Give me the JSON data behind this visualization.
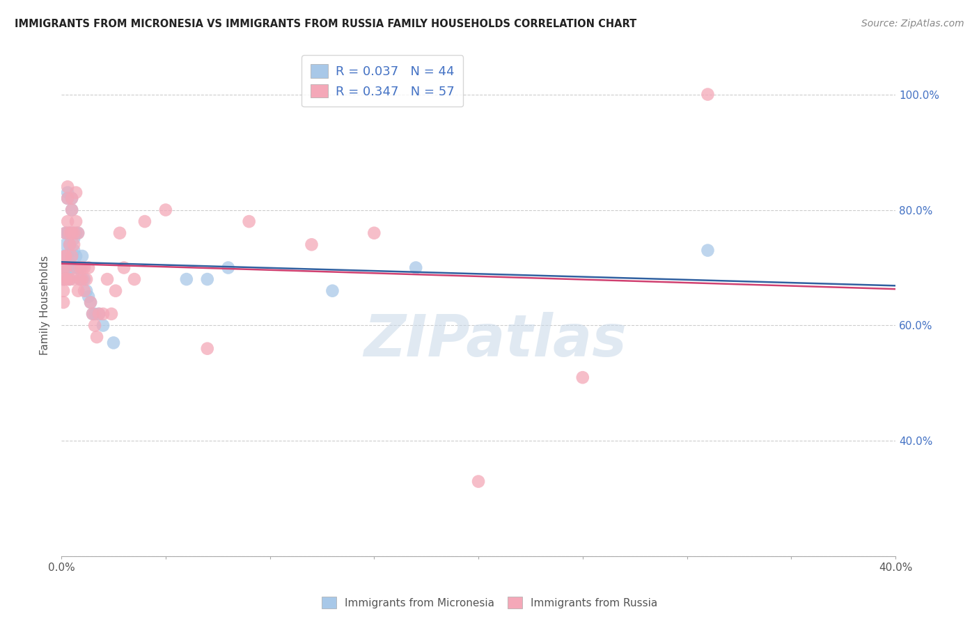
{
  "title": "IMMIGRANTS FROM MICRONESIA VS IMMIGRANTS FROM RUSSIA FAMILY HOUSEHOLDS CORRELATION CHART",
  "source": "Source: ZipAtlas.com",
  "ylabel": "Family Households",
  "xlim": [
    0.0,
    0.4
  ],
  "ylim": [
    0.2,
    1.07
  ],
  "legend_r_blue": "R = 0.037",
  "legend_n_blue": "N = 44",
  "legend_r_pink": "R = 0.347",
  "legend_n_pink": "N = 57",
  "blue_color": "#a8c8e8",
  "pink_color": "#f4a8b8",
  "blue_line_color": "#3060a0",
  "pink_line_color": "#d04070",
  "watermark_text": "ZIPatlas",
  "legend_bottom_blue": "Immigrants from Micronesia",
  "legend_bottom_pink": "Immigrants from Russia",
  "blue_points_x": [
    0.001,
    0.001,
    0.001,
    0.002,
    0.002,
    0.002,
    0.003,
    0.003,
    0.003,
    0.003,
    0.004,
    0.004,
    0.004,
    0.004,
    0.005,
    0.005,
    0.005,
    0.005,
    0.006,
    0.006,
    0.006,
    0.007,
    0.007,
    0.008,
    0.008,
    0.009,
    0.009,
    0.01,
    0.01,
    0.011,
    0.012,
    0.013,
    0.014,
    0.015,
    0.016,
    0.018,
    0.02,
    0.025,
    0.06,
    0.07,
    0.08,
    0.13,
    0.17,
    0.31
  ],
  "blue_points_y": [
    0.7,
    0.72,
    0.68,
    0.76,
    0.74,
    0.7,
    0.83,
    0.82,
    0.76,
    0.72,
    0.76,
    0.74,
    0.7,
    0.68,
    0.82,
    0.8,
    0.76,
    0.72,
    0.75,
    0.73,
    0.7,
    0.76,
    0.72,
    0.76,
    0.7,
    0.7,
    0.68,
    0.72,
    0.68,
    0.68,
    0.66,
    0.65,
    0.64,
    0.62,
    0.62,
    0.62,
    0.6,
    0.57,
    0.68,
    0.68,
    0.7,
    0.66,
    0.7,
    0.73
  ],
  "pink_points_x": [
    0.001,
    0.001,
    0.001,
    0.001,
    0.002,
    0.002,
    0.002,
    0.002,
    0.002,
    0.003,
    0.003,
    0.003,
    0.003,
    0.004,
    0.004,
    0.004,
    0.005,
    0.005,
    0.005,
    0.005,
    0.006,
    0.006,
    0.006,
    0.007,
    0.007,
    0.007,
    0.008,
    0.008,
    0.009,
    0.009,
    0.01,
    0.01,
    0.011,
    0.011,
    0.012,
    0.013,
    0.014,
    0.015,
    0.016,
    0.017,
    0.018,
    0.02,
    0.022,
    0.024,
    0.026,
    0.028,
    0.03,
    0.035,
    0.04,
    0.05,
    0.07,
    0.09,
    0.12,
    0.15,
    0.2,
    0.25,
    0.31
  ],
  "pink_points_y": [
    0.68,
    0.7,
    0.66,
    0.64,
    0.72,
    0.7,
    0.68,
    0.76,
    0.72,
    0.84,
    0.82,
    0.78,
    0.68,
    0.76,
    0.74,
    0.68,
    0.82,
    0.8,
    0.76,
    0.72,
    0.76,
    0.74,
    0.68,
    0.83,
    0.78,
    0.7,
    0.76,
    0.66,
    0.7,
    0.68,
    0.7,
    0.68,
    0.7,
    0.66,
    0.68,
    0.7,
    0.64,
    0.62,
    0.6,
    0.58,
    0.62,
    0.62,
    0.68,
    0.62,
    0.66,
    0.76,
    0.7,
    0.68,
    0.78,
    0.8,
    0.56,
    0.78,
    0.74,
    0.76,
    0.33,
    0.51,
    1.0
  ]
}
